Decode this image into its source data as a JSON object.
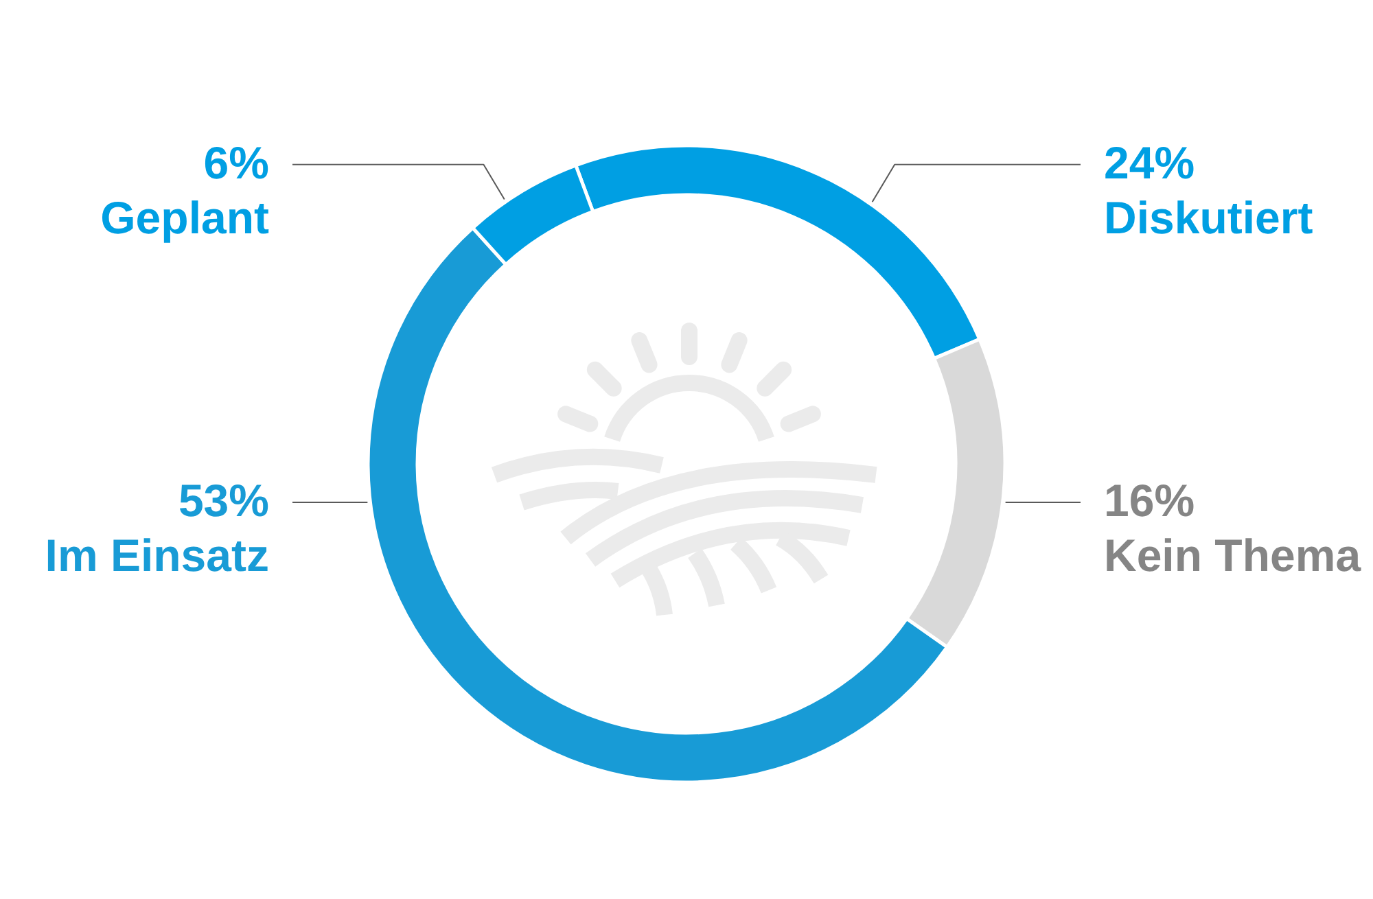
{
  "chart_data": {
    "type": "donut",
    "categories": [
      "Diskutiert",
      "Kein Thema",
      "Im Einsatz",
      "Geplant"
    ],
    "values": [
      24,
      16,
      53,
      6
    ],
    "colors": [
      "#009fe3",
      "#d9d9d9",
      "#189bd6",
      "#009fe3"
    ],
    "value_labels": [
      "24%",
      "16%",
      "53%",
      "6%"
    ]
  }
}
